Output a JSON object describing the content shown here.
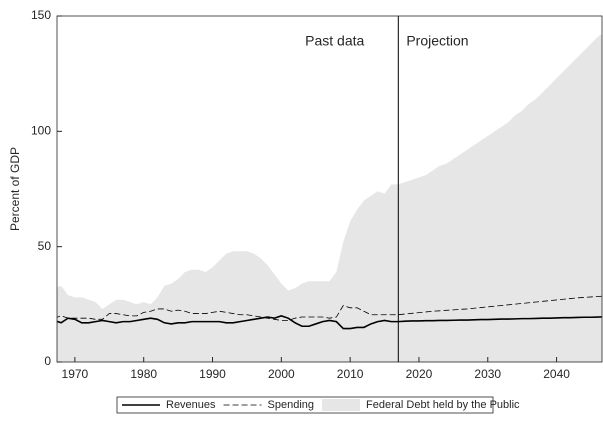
{
  "chart_data": {
    "type": "line",
    "y_label": "Percent of GDP",
    "annotations": [
      "Past data",
      "Projection"
    ],
    "divider_x": 2017,
    "x": [
      1967,
      1968,
      1969,
      1970,
      1971,
      1972,
      1973,
      1974,
      1975,
      1976,
      1977,
      1978,
      1979,
      1980,
      1981,
      1982,
      1983,
      1984,
      1985,
      1986,
      1987,
      1988,
      1989,
      1990,
      1991,
      1992,
      1993,
      1994,
      1995,
      1996,
      1997,
      1998,
      1999,
      2000,
      2001,
      2002,
      2003,
      2004,
      2005,
      2006,
      2007,
      2008,
      2009,
      2010,
      2011,
      2012,
      2013,
      2014,
      2015,
      2016,
      2017,
      2018,
      2019,
      2020,
      2021,
      2022,
      2023,
      2024,
      2025,
      2026,
      2027,
      2028,
      2029,
      2030,
      2031,
      2032,
      2033,
      2034,
      2035,
      2036,
      2037,
      2038,
      2039,
      2040,
      2041,
      2042,
      2043,
      2044,
      2045,
      2046,
      2047
    ],
    "series": [
      {
        "name": "Revenues",
        "color": "#000000",
        "style": "solid",
        "values": [
          18,
          17,
          19,
          18.5,
          17,
          17,
          17.5,
          18,
          17.5,
          17,
          17.5,
          17.5,
          18,
          18.5,
          19,
          18.5,
          17,
          16.5,
          17,
          17,
          17.5,
          17.5,
          17.5,
          17.5,
          17.5,
          17,
          17,
          17.5,
          18,
          18.5,
          19,
          19.5,
          19,
          20,
          19,
          17,
          15.5,
          15.5,
          16.5,
          17.5,
          18,
          17.5,
          14.5,
          14.5,
          15,
          15,
          16.5,
          17.5,
          18,
          17.5,
          17.5,
          17.7,
          17.8,
          17.8,
          17.9,
          17.9,
          18,
          18,
          18.1,
          18.2,
          18.2,
          18.3,
          18.4,
          18.4,
          18.5,
          18.6,
          18.6,
          18.7,
          18.8,
          18.8,
          18.9,
          19,
          19,
          19.1,
          19.2,
          19.2,
          19.3,
          19.4,
          19.4,
          19.5,
          19.6
        ]
      },
      {
        "name": "Spending",
        "color": "#000000",
        "style": "dashed",
        "values": [
          19,
          20,
          19,
          19,
          19,
          19,
          18.5,
          18.5,
          21,
          21,
          20.5,
          20,
          20,
          21.5,
          22,
          23,
          23,
          22,
          22.5,
          22,
          21,
          21,
          21,
          21.5,
          22,
          21.5,
          21,
          20.5,
          20.5,
          20,
          19.5,
          19,
          18.5,
          18,
          18,
          19,
          19.5,
          19.5,
          19.5,
          19.5,
          19,
          19.5,
          24.5,
          23.5,
          23.5,
          22,
          20.5,
          20.5,
          20.5,
          20.5,
          20.5,
          20.8,
          21.1,
          21.4,
          21.7,
          22,
          22.2,
          22.4,
          22.6,
          22.8,
          23,
          23.3,
          23.6,
          23.9,
          24.2,
          24.5,
          24.8,
          25.1,
          25.4,
          25.7,
          26,
          26.3,
          26.6,
          26.9,
          27.2,
          27.5,
          27.8,
          28,
          28.2,
          28.4,
          28.6
        ]
      },
      {
        "name": "Federal Debt held by the Public",
        "color": "#e6e6e6",
        "style": "area",
        "values": [
          32,
          33,
          29,
          28,
          28,
          27,
          26,
          23,
          25,
          27,
          27,
          26,
          25,
          26,
          25,
          28,
          33,
          34,
          36,
          39,
          40,
          40,
          39,
          41,
          44,
          47,
          48,
          48,
          48,
          47,
          45,
          42,
          38,
          34,
          31,
          32,
          34,
          35,
          35,
          35,
          35,
          39,
          52,
          61,
          66,
          70,
          72,
          74,
          73,
          77,
          77,
          78,
          79,
          80,
          81,
          83,
          85,
          86,
          88,
          90,
          92,
          94,
          96,
          98,
          100,
          102,
          104,
          107,
          109,
          112,
          114,
          117,
          120,
          123,
          126,
          129,
          132,
          135,
          138,
          141,
          143
        ]
      }
    ],
    "xlim": [
      1967.4,
      2046.6
    ],
    "xticks": [
      1970,
      1980,
      1990,
      2000,
      2010,
      2020,
      2030,
      2040
    ],
    "ylim": [
      0,
      150
    ],
    "yticks": [
      0,
      50,
      100,
      150
    ]
  }
}
